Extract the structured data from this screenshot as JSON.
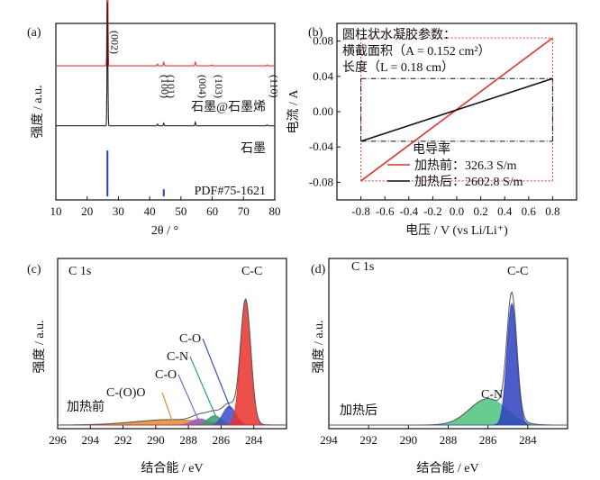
{
  "chart_data": [
    {
      "panel": "(a)",
      "type": "line",
      "xlabel": "2θ / °",
      "ylabel": "强度 / a.u.",
      "xlim": [
        10,
        80
      ],
      "xticks": [
        10,
        20,
        30,
        40,
        50,
        60,
        70,
        80
      ],
      "series": [
        {
          "name": "石墨@石墨烯",
          "color": "#e8322a",
          "baseline": 0.76,
          "peaks": [
            [
              26.5,
              0.95
            ],
            [
              42.5,
              0.01
            ],
            [
              44.5,
              0.02
            ],
            [
              54.6,
              0.02
            ],
            [
              59.8,
              0.005
            ],
            [
              77.5,
              0.005
            ]
          ]
        },
        {
          "name": "石墨",
          "color": "#222222",
          "baseline": 0.42,
          "peaks": [
            [
              26.5,
              0.7
            ],
            [
              42.5,
              0.01
            ],
            [
              44.5,
              0.015
            ],
            [
              54.6,
              0.02
            ],
            [
              77.5,
              0.005
            ]
          ]
        },
        {
          "name": "PDF#75-1621",
          "color": "#1f3fbf",
          "type": "stick",
          "baseline": 0.02,
          "sticks": [
            [
              26.5,
              0.26
            ],
            [
              44.5,
              0.04
            ]
          ]
        }
      ],
      "peak_labels": [
        "(002)",
        "(100)",
        "(101)",
        "(004)",
        "(103)",
        "(110)"
      ],
      "peak_label_x": [
        26.5,
        42.5,
        44.5,
        54.6,
        59.8,
        77.5
      ]
    },
    {
      "panel": "(b)",
      "type": "line",
      "xlabel": "电压 / V (vs Li/Li⁺)",
      "ylabel": "电流 / A",
      "xlim": [
        -1.0,
        1.0
      ],
      "ylim": [
        -0.1,
        0.1
      ],
      "xticks": [
        -0.8,
        -0.6,
        -0.4,
        -0.2,
        0.0,
        0.2,
        0.4,
        0.6,
        0.8
      ],
      "xticklabels": [
        "-0.8",
        "-0.6",
        "-0.4",
        "-0.2",
        "0.0",
        "0.2",
        "0.4",
        "0.6",
        "0.8"
      ],
      "yticks": [
        -0.08,
        -0.04,
        0.0,
        0.04,
        0.08
      ],
      "yticklabels": [
        "-0.08",
        "-0.04",
        "0.00",
        "0.04",
        "0.08"
      ],
      "series": [
        {
          "name": "加热前：326.3 S/m",
          "color": "#e8322a",
          "x": [
            -0.8,
            0.8
          ],
          "y": [
            -0.0785,
            0.0835
          ]
        },
        {
          "name": "加热后：2602.8 S/m",
          "color": "#111111",
          "x": [
            -0.8,
            0.8
          ],
          "y": [
            -0.0335,
            0.0375
          ]
        }
      ],
      "legend_title": "电导率",
      "annotation_lines": [
        "圆柱状水凝胶参数：",
        "横截面积（A = 0.152 cm²）",
        "长度（L = 0.18 cm）"
      ]
    },
    {
      "panel": "(c)",
      "type": "area",
      "xlabel": "结合能 / eV",
      "ylabel": "强度 / a.u.",
      "xlim": [
        296,
        282
      ],
      "xticks": [
        296,
        294,
        292,
        290,
        288,
        286,
        284
      ],
      "spectrum_label": "C 1s",
      "condition_label": "加热前",
      "components": [
        {
          "name": "C-C",
          "center": 284.5,
          "height": 0.8,
          "width": 0.45,
          "color": "#e8322a"
        },
        {
          "name": "C-O",
          "center": 285.5,
          "height": 0.12,
          "width": 0.55,
          "color": "#3a4fc9"
        },
        {
          "name": "C-N",
          "center": 286.4,
          "height": 0.06,
          "width": 0.6,
          "color": "#2fa06a"
        },
        {
          "name": "C-O",
          "center": 287.3,
          "height": 0.04,
          "width": 0.7,
          "color": "#8e5ec9"
        },
        {
          "name": "C-(O)O",
          "center": 289.0,
          "height": 0.035,
          "width": 3.2,
          "color": "#e8892a"
        }
      ]
    },
    {
      "panel": "(d)",
      "type": "area",
      "xlabel": "结合能 / eV",
      "ylabel": "强度 / a.u.",
      "xlim": [
        294,
        282
      ],
      "xticks": [
        294,
        292,
        290,
        288,
        286,
        284
      ],
      "spectrum_label": "C 1s",
      "condition_label": "加热后",
      "components": [
        {
          "name": "C-C",
          "center": 284.8,
          "height": 0.78,
          "width": 0.35,
          "color": "#2d3fc0"
        },
        {
          "name": "C-N",
          "center": 286.0,
          "height": 0.17,
          "width": 1.3,
          "color": "#4cc47a"
        }
      ]
    }
  ]
}
